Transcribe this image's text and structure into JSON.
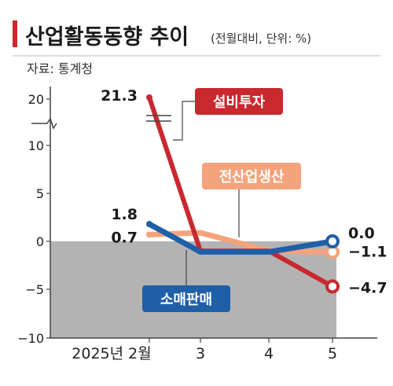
{
  "title": "산업활동동향 추이",
  "unit": "(전월대비, 단위: %)",
  "source": "자료: 통계청",
  "chart_data": {
    "type": "line",
    "x": [
      "2025년 2월",
      "3",
      "4",
      "5"
    ],
    "y_ticks": [
      "20",
      "10",
      "5",
      "0",
      "−5",
      "−10"
    ],
    "y_axis_break": true,
    "grid": false,
    "series": [
      {
        "name": "설비투자",
        "color": "#c8282e",
        "values": [
          21.3,
          -1.0,
          -1.0,
          -4.7
        ],
        "start_label": "21.3",
        "end_label": "−4.7"
      },
      {
        "name": "전산업생산",
        "color": "#f4a37c",
        "values": [
          0.7,
          0.9,
          -1.0,
          -1.1
        ],
        "start_label": "0.7",
        "end_label": "−1.1"
      },
      {
        "name": "소매판매",
        "color": "#1f5fa8",
        "values": [
          1.8,
          -1.1,
          -1.1,
          0.0
        ],
        "start_label": "1.8",
        "end_label": "0.0"
      }
    ]
  }
}
